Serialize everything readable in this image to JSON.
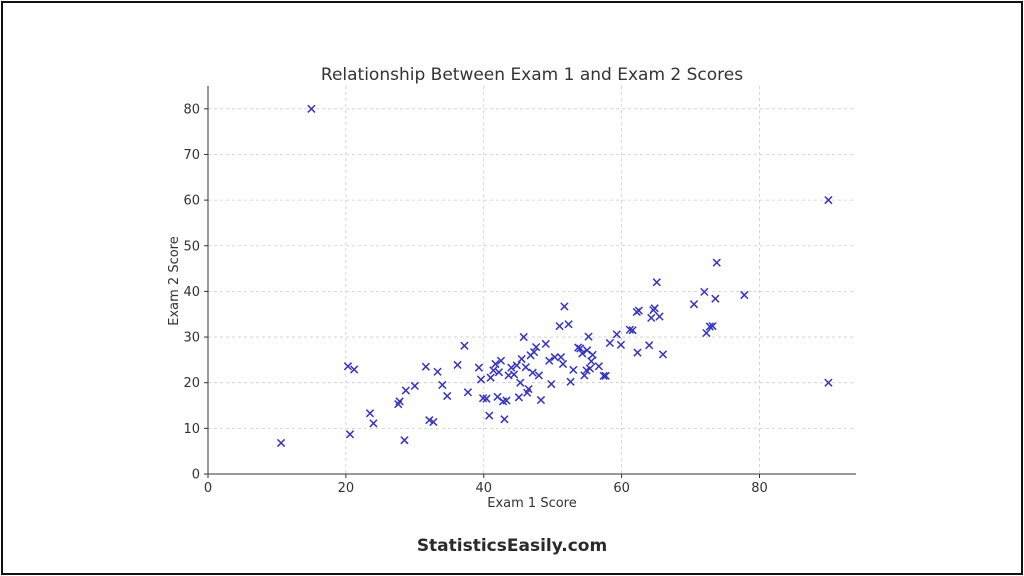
{
  "footer": {
    "brand": "StatisticsEasily.com"
  },
  "chart_data": {
    "type": "scatter",
    "title": "Relationship Between Exam 1 and Exam 2 Scores",
    "xlabel": "Exam 1 Score",
    "ylabel": "Exam 2 Score",
    "xlim": [
      0,
      94
    ],
    "ylim": [
      0,
      85
    ],
    "xticks": [
      0,
      20,
      40,
      60,
      80
    ],
    "yticks": [
      0,
      10,
      20,
      30,
      40,
      50,
      60,
      70,
      80
    ],
    "grid": true,
    "marker": "x",
    "color": "#3333cc",
    "points": [
      [
        10.6,
        6.8
      ],
      [
        15,
        80
      ],
      [
        20.3,
        23.6
      ],
      [
        20.6,
        8.7
      ],
      [
        21.2,
        22.9
      ],
      [
        23.5,
        13.3
      ],
      [
        24,
        11.1
      ],
      [
        27.6,
        15.3
      ],
      [
        27.8,
        15.9
      ],
      [
        28.5,
        7.4
      ],
      [
        28.7,
        18.3
      ],
      [
        30,
        19.3
      ],
      [
        31.6,
        23.5
      ],
      [
        32.1,
        11.8
      ],
      [
        32.7,
        11.4
      ],
      [
        33.3,
        22.4
      ],
      [
        34,
        19.5
      ],
      [
        34.7,
        17.1
      ],
      [
        36.2,
        23.9
      ],
      [
        37.2,
        28.1
      ],
      [
        37.7,
        17.9
      ],
      [
        39.3,
        23.3
      ],
      [
        39.6,
        20.7
      ],
      [
        39.9,
        16.6
      ],
      [
        40.4,
        16.5
      ],
      [
        40.8,
        12.8
      ],
      [
        41,
        21.1
      ],
      [
        41.4,
        22.7
      ],
      [
        41.7,
        24.1
      ],
      [
        42,
        16.9
      ],
      [
        42.2,
        22.3
      ],
      [
        42.5,
        24.8
      ],
      [
        42.8,
        15.9
      ],
      [
        43,
        12
      ],
      [
        43.3,
        16.1
      ],
      [
        43.6,
        21.6
      ],
      [
        44,
        23.3
      ],
      [
        44.4,
        21.8
      ],
      [
        44.8,
        23.8
      ],
      [
        45.1,
        16.8
      ],
      [
        45.3,
        20
      ],
      [
        45.5,
        25.2
      ],
      [
        45.8,
        30
      ],
      [
        46.1,
        23.4
      ],
      [
        46.3,
        17.8
      ],
      [
        46.5,
        18.6
      ],
      [
        46.8,
        26
      ],
      [
        47.1,
        22.2
      ],
      [
        47.3,
        26.7
      ],
      [
        47.6,
        27.8
      ],
      [
        48,
        21.6
      ],
      [
        48.3,
        16.2
      ],
      [
        49,
        28.5
      ],
      [
        49.5,
        24.8
      ],
      [
        49.8,
        19.7
      ],
      [
        50.3,
        25.6
      ],
      [
        51,
        32.4
      ],
      [
        51.2,
        25.6
      ],
      [
        51.5,
        24.1
      ],
      [
        51.7,
        36.7
      ],
      [
        52.3,
        32.8
      ],
      [
        52.6,
        20.2
      ],
      [
        53,
        22.8
      ],
      [
        53.7,
        27.7
      ],
      [
        54,
        27.5
      ],
      [
        54.3,
        26.4
      ],
      [
        54.6,
        21.6
      ],
      [
        54.9,
        22.7
      ],
      [
        55,
        27.1
      ],
      [
        55.2,
        30.1
      ],
      [
        55.4,
        23.1
      ],
      [
        55.6,
        24.7
      ],
      [
        55.8,
        26.1
      ],
      [
        56.7,
        23.6
      ],
      [
        57.4,
        21.5
      ],
      [
        57.7,
        21.5
      ],
      [
        58.3,
        28.7
      ],
      [
        59.3,
        30.6
      ],
      [
        59.9,
        28.3
      ],
      [
        61.2,
        31.6
      ],
      [
        61.6,
        31.5
      ],
      [
        62.2,
        35.5
      ],
      [
        62.3,
        26.6
      ],
      [
        62.5,
        35.8
      ],
      [
        64,
        28.2
      ],
      [
        64.3,
        34.2
      ],
      [
        64.6,
        35.9
      ],
      [
        64.8,
        36.3
      ],
      [
        65.1,
        42
      ],
      [
        65.5,
        34.5
      ],
      [
        66,
        26.2
      ],
      [
        70.5,
        37.2
      ],
      [
        72,
        39.9
      ],
      [
        72.3,
        30.9
      ],
      [
        72.8,
        32.3
      ],
      [
        73.2,
        32.4
      ],
      [
        73.6,
        38.4
      ],
      [
        73.8,
        46.3
      ],
      [
        77.8,
        39.2
      ],
      [
        90,
        60
      ],
      [
        90,
        20
      ]
    ]
  }
}
